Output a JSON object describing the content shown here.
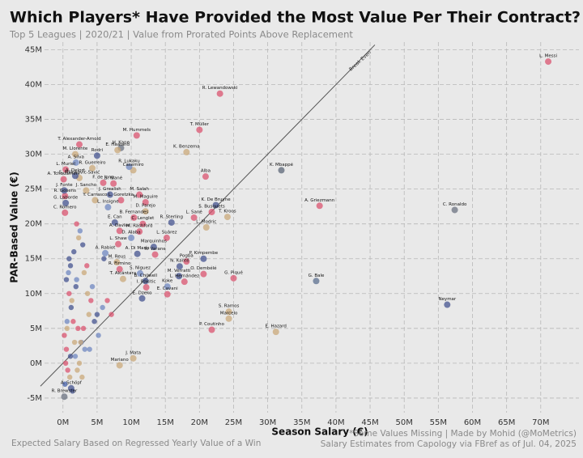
{
  "chart_data": {
    "type": "scatter",
    "title": "Which Players* Have Provided the Most Value Per Their Contract?",
    "subtitle": "Top 5 Leagues | 2020/21 | Value from Prorated Points Above Replacement",
    "xlabel": "Season Salary (€)",
    "ylabel": "PAR-Based Value (€)",
    "footnote_left": "Expected Salary Based on Regressed Yearly Value of a Win",
    "footnote_right": [
      "*Some Values Missing | Made by Mohid (@MoMetrics)",
      "Salary Estimates from Capology via FBref as of Jul. 04, 2025"
    ],
    "reference_line": {
      "label": "Break Even",
      "x": [
        -3.3,
        45.7
      ],
      "y": [
        -3.3,
        45.7
      ]
    },
    "grid": true,
    "xlim": [
      -2.7,
      75.6
    ],
    "ylim": [
      -7.1,
      46.1
    ],
    "xticks": [
      {
        "value": 0,
        "label": "0M"
      },
      {
        "value": 5,
        "label": "5M"
      },
      {
        "value": 10,
        "label": "10M"
      },
      {
        "value": 15,
        "label": "15M"
      },
      {
        "value": 20,
        "label": "20M"
      },
      {
        "value": 25,
        "label": "25M"
      },
      {
        "value": 30,
        "label": "30M"
      },
      {
        "value": 35,
        "label": "35M"
      },
      {
        "value": 40,
        "label": "40M"
      },
      {
        "value": 45,
        "label": "45M"
      },
      {
        "value": 50,
        "label": "50M"
      },
      {
        "value": 55,
        "label": "55M"
      },
      {
        "value": 60,
        "label": "60M"
      },
      {
        "value": 65,
        "label": "65M"
      },
      {
        "value": 70,
        "label": "70M"
      }
    ],
    "yticks": [
      {
        "value": -5,
        "label": "-5M"
      },
      {
        "value": 0,
        "label": "0M"
      },
      {
        "value": 5,
        "label": "5M"
      },
      {
        "value": 10,
        "label": "10M"
      },
      {
        "value": 15,
        "label": "15M"
      },
      {
        "value": 20,
        "label": "20M"
      },
      {
        "value": 25,
        "label": "25M"
      },
      {
        "value": 30,
        "label": "30M"
      },
      {
        "value": 35,
        "label": "35M"
      },
      {
        "value": 40,
        "label": "40M"
      },
      {
        "value": 45,
        "label": "45M"
      }
    ],
    "labels": [
      "L. Messi",
      "R. Lewandowski",
      "T. Müller",
      "K. Mbappé",
      "A. Griezmann",
      "C. Ronaldo",
      "G. Bale",
      "Neymar",
      "E. Hazard",
      "P. Coutinho",
      "S. Ramos",
      "Marcelo",
      "K. Benzema",
      "Alba",
      "S. Busquets",
      "K. De Bruyne",
      "T. Kroos",
      "L. Modric",
      "L. Sané",
      "R. Sterling",
      "Pogba",
      "P. Kimpembe",
      "O. Dembélé",
      "G. Piqué",
      "M. Verratti",
      "L. Hernández",
      "N. Kanté",
      "M. Hummels",
      "E. Haaland",
      "H. Kane",
      "T. Alexander-Arnold",
      "M. Llorente",
      "Rodri",
      "A. Silva",
      "L. Muriel",
      "R. Guerreiro",
      "R. Lukaku",
      "Casemiro",
      "A. Delort",
      "S. Milinkovic-Savić",
      "A. Tchouaméni",
      "F. de Jong",
      "S. Mané",
      "J. Fonte",
      "R. Gosens",
      "J. Grealish",
      "M. Salah",
      "G. Laborde",
      "J. Sancho",
      "Y. Carrasco",
      "L. Goretzka",
      "M. Maguire",
      "L. Insigne",
      "C. Romero",
      "D. Parejo",
      "B. Fernandes",
      "E. Can",
      "C. Lenglet",
      "A. Davies",
      "M. Rashford",
      "D. Alaba",
      "L. Suárez",
      "L. Shaw",
      "Marquinhos",
      "A. Rabiot",
      "A. Di María",
      "R. Varane",
      "M. Reus",
      "R. Firmino",
      "S. Niguez",
      "B. Chilwell",
      "T. Alcántara",
      "I. Rakitic",
      "Koke",
      "E. Cavani",
      "E. Dzeko",
      "J. Mata",
      "Mariano",
      "A. Schöpf",
      "R. Brewster",
      null,
      null,
      null,
      null,
      null,
      null,
      null,
      null,
      null,
      null,
      null,
      null,
      null,
      null,
      null,
      null,
      null,
      null,
      null,
      null,
      null,
      null,
      null,
      null,
      null,
      null,
      null,
      null,
      null,
      null,
      null,
      null,
      null,
      null,
      null,
      null,
      null,
      null,
      null,
      null,
      null,
      null,
      null,
      null,
      null,
      null,
      null,
      null,
      null,
      null
    ],
    "x": [
      71.1,
      23.0,
      20.0,
      32.0,
      37.6,
      57.4,
      37.1,
      56.3,
      31.2,
      21.8,
      24.3,
      24.3,
      18.1,
      20.9,
      21.8,
      22.4,
      24.1,
      21.0,
      19.2,
      15.9,
      18.1,
      20.6,
      20.6,
      25.0,
      17.0,
      17.8,
      17.1,
      10.8,
      8.0,
      8.5,
      2.4,
      1.8,
      5.0,
      1.9,
      0.4,
      4.3,
      9.7,
      10.3,
      1.8,
      2.4,
      0.1,
      5.9,
      7.4,
      0.2,
      0.3,
      6.9,
      11.2,
      0.4,
      3.4,
      4.7,
      8.5,
      12.1,
      6.6,
      0.3,
      12.1,
      10.4,
      7.6,
      11.7,
      8.3,
      11.2,
      10.0,
      15.2,
      8.1,
      13.3,
      6.2,
      10.9,
      13.5,
      7.9,
      8.3,
      11.3,
      12.1,
      8.8,
      12.2,
      15.3,
      15.3,
      11.6,
      10.3,
      8.3,
      1.2,
      0.2,
      0.5,
      1.2,
      2.1,
      0.8,
      3.0,
      1.6,
      2.6,
      0.3,
      4.1,
      1.9,
      2.8,
      0.6,
      3.5,
      1.1,
      2.3,
      5.2,
      0.9,
      1.4,
      3.8,
      2.0,
      0.4,
      6.0,
      1.7,
      2.5,
      0.7,
      4.6,
      1.3,
      3.2,
      0.2,
      2.9,
      1.0,
      5.8,
      2.2,
      0.5,
      3.6,
      1.8,
      7.1,
      0.9,
      2.4,
      4.3,
      1.5,
      0.3,
      3.1,
      2.7,
      6.5,
      1.1,
      0.6,
      3.9,
      2.0,
      5.0
    ],
    "y": [
      43.3,
      38.7,
      33.5,
      27.7,
      22.6,
      22.0,
      11.8,
      8.4,
      4.5,
      4.8,
      7.4,
      6.4,
      30.3,
      26.8,
      21.7,
      22.7,
      21.0,
      19.5,
      20.9,
      20.2,
      14.6,
      15.0,
      12.8,
      12.2,
      12.5,
      11.7,
      13.9,
      32.7,
      30.6,
      30.9,
      31.4,
      30.0,
      29.8,
      28.8,
      27.8,
      28.0,
      28.2,
      27.7,
      26.9,
      26.6,
      26.4,
      25.9,
      25.8,
      24.8,
      24.0,
      24.2,
      24.2,
      23.0,
      24.8,
      23.4,
      23.4,
      23.1,
      22.4,
      21.6,
      21.8,
      20.9,
      20.2,
      20.0,
      19.0,
      18.9,
      18.0,
      18.0,
      17.1,
      16.7,
      15.8,
      15.7,
      15.6,
      14.5,
      13.5,
      12.9,
      11.8,
      12.1,
      10.9,
      11.0,
      9.9,
      9.3,
      0.7,
      -0.3,
      -3.6,
      -4.8,
      2,
      8,
      -1,
      13,
      5,
      16,
      3,
      -3,
      9,
      11,
      -2,
      6,
      14,
      1,
      18,
      4,
      10,
      -4,
      7,
      12,
      0,
      15,
      3,
      19,
      -1,
      6,
      9,
      2,
      4,
      17,
      -2,
      8,
      5,
      12,
      10,
      1,
      7,
      15,
      0,
      11,
      6,
      -3,
      13,
      3,
      9,
      14,
      5,
      2,
      20,
      7
    ],
    "colors": [
      "#d9536f",
      "#d9536f",
      "#d9536f",
      "#5b6577",
      "#d9536f",
      "#6b7280",
      "#5b6f8f",
      "#44538f",
      "#c9a87a",
      "#d9536f",
      "#c9a87a",
      "#c9a87a",
      "#c9a87a",
      "#d9536f",
      "#d9536f",
      "#44538f",
      "#c9a87a",
      "#c9a87a",
      "#d9536f",
      "#44538f",
      "#d9536f",
      "#44538f",
      "#d9536f",
      "#d9536f",
      "#44538f",
      "#d9536f",
      "#44538f",
      "#d9536f",
      "#c9a87a",
      "#6b7280",
      "#d9536f",
      "#c9a87a",
      "#44538f",
      "#6f87c0",
      "#d9536f",
      "#c9a87a",
      "#6f87c0",
      "#c9a87a",
      "#44538f",
      "#c9a87a",
      "#d9536f",
      "#d9536f",
      "#d9536f",
      "#44538f",
      "#d9536f",
      "#44538f",
      "#d9536f",
      "#44538f",
      "#c9a87a",
      "#c9a87a",
      "#d9536f",
      "#d9536f",
      "#6f87c0",
      "#d9536f",
      "#c9a87a",
      "#d9536f",
      "#44538f",
      "#d9536f",
      "#d9536f",
      "#d9536f",
      "#6f87c0",
      "#d9536f",
      "#d9536f",
      "#44538f",
      "#6f87c0",
      "#44538f",
      "#d9536f",
      "#c9a87a",
      "#d9536f",
      "#6f87c0",
      "#44538f",
      "#c9a87a",
      "#d9536f",
      "#6f87c0",
      "#d9536f",
      "#44538f",
      "#c9a87a",
      "#c9a87a",
      "#44538f",
      "#6b7280",
      "#d9536f",
      "#44538f",
      "#c9a87a",
      "#6f87c0",
      "#d9536f",
      "#44538f",
      "#c9a87a",
      "#6f87c0",
      "#d9536f",
      "#44538f",
      "#c9a87a",
      "#6f87c0",
      "#d9536f",
      "#44538f",
      "#c9a87a",
      "#6f87c0",
      "#d9536f",
      "#44538f",
      "#c9a87a",
      "#6f87c0",
      "#d9536f",
      "#44538f",
      "#c9a87a",
      "#6f87c0",
      "#d9536f",
      "#44538f",
      "#c9a87a",
      "#6f87c0",
      "#d9536f",
      "#44538f",
      "#c9a87a",
      "#6f87c0",
      "#d9536f",
      "#44538f",
      "#c9a87a",
      "#6f87c0",
      "#d9536f",
      "#44538f",
      "#c9a87a",
      "#6f87c0",
      "#d9536f",
      "#44538f",
      "#c9a87a",
      "#6f87c0",
      "#d9536f",
      "#44538f",
      "#c9a87a",
      "#6f87c0",
      "#d9536f",
      "#44538f"
    ]
  }
}
